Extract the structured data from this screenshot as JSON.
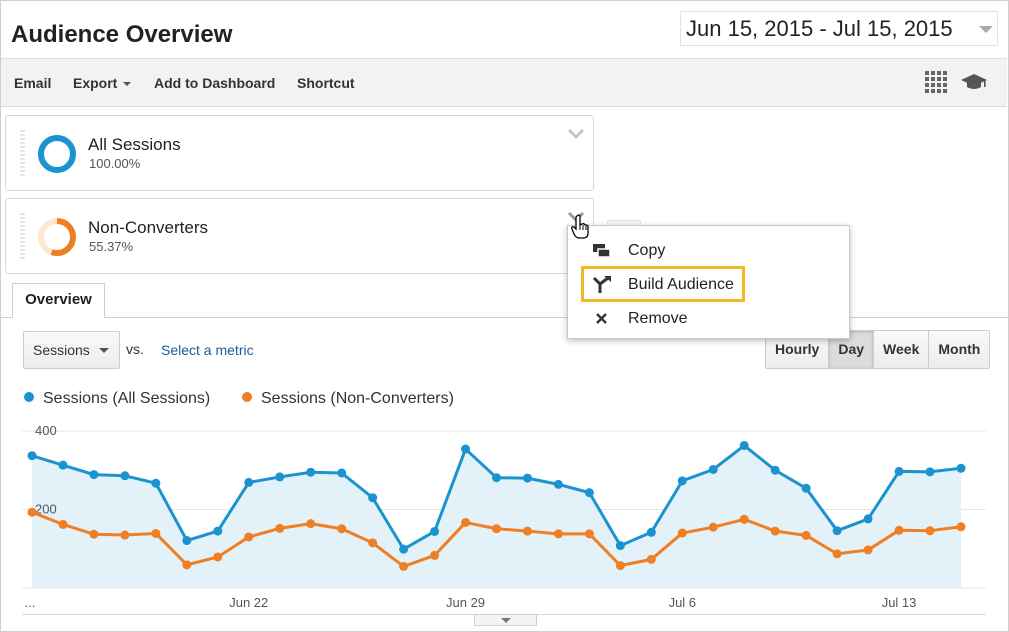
{
  "header": {
    "title": "Audience Overview",
    "date_range": "Jun 15, 2015 - Jul 15, 2015"
  },
  "toolbar": {
    "email": "Email",
    "export": "Export",
    "add_to_dashboard": "Add to Dashboard",
    "shortcut": "Shortcut",
    "icons": [
      "grid-icon",
      "graduation-cap-icon"
    ]
  },
  "segments": [
    {
      "name": "All Sessions",
      "percent": "100.00%",
      "fraction": 1.0,
      "color": "#1a93cf"
    },
    {
      "name": "Non-Converters",
      "percent": "55.37%",
      "fraction": 0.5537,
      "color": "#ef7f22"
    }
  ],
  "segment_menu": {
    "items": [
      {
        "label": "Copy",
        "icon": "copy-icon"
      },
      {
        "label": "Build Audience",
        "icon": "build-audience-icon"
      },
      {
        "label": "Remove",
        "icon": "remove-icon"
      }
    ],
    "highlight_color": "#f2b824"
  },
  "tabs": {
    "overview": "Overview"
  },
  "controls": {
    "metric": "Sessions",
    "vs": "vs.",
    "select_metric": "Select a metric",
    "periods": [
      "Hourly",
      "Day",
      "Week",
      "Month"
    ],
    "active_period": "Day"
  },
  "chart_data": {
    "type": "area",
    "series": [
      {
        "name": "Sessions (All Sessions)",
        "color": "#1a93cf",
        "values": [
          337,
          313,
          289,
          286,
          267,
          121,
          145,
          269,
          283,
          295,
          293,
          230,
          99,
          144,
          354,
          281,
          280,
          264,
          243,
          108,
          142,
          273,
          302,
          363,
          300,
          254,
          146,
          176,
          297,
          296,
          305
        ]
      },
      {
        "name": "Sessions (Non-Converters)",
        "color": "#ef7f22",
        "values": [
          193,
          162,
          137,
          135,
          139,
          59,
          79,
          130,
          152,
          164,
          151,
          115,
          55,
          83,
          167,
          151,
          145,
          138,
          138,
          57,
          73,
          140,
          155,
          175,
          145,
          134,
          87,
          97,
          147,
          146,
          156
        ]
      }
    ],
    "x_tick_labels": [
      "...",
      "Jun 22",
      "Jun 29",
      "Jul 6",
      "Jul 13"
    ],
    "x_tick_indices": [
      0,
      7,
      14,
      21,
      28
    ],
    "y_tick_labels": [
      "400",
      "200"
    ],
    "y_ticks": [
      400,
      200
    ],
    "ylim": [
      0,
      400
    ],
    "grid": true,
    "legend": "top-left"
  }
}
